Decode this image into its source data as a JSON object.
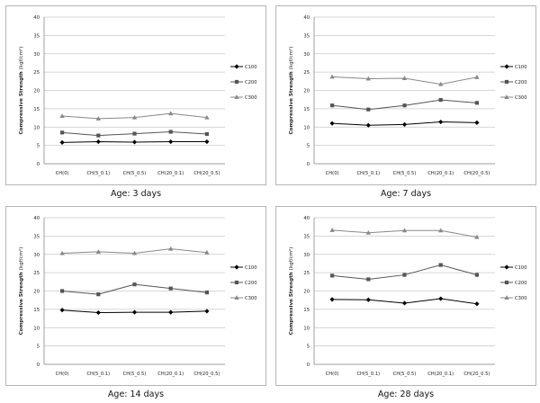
{
  "ylabel_main": "Compressive   Strength",
  "ylabel_unit": "(kgf/cm²)",
  "chart_data": [
    {
      "type": "line",
      "caption": "Age:  3 days",
      "categories": [
        "CH(0)",
        "CH(5_0.1)",
        "CH(5_0.5)",
        "CH(20_0.1)",
        "CH(20_0.5)"
      ],
      "yticks": [
        "0",
        "5",
        "10",
        "15",
        "20",
        "25",
        "30",
        "35",
        "40"
      ],
      "ylim": [
        0,
        40
      ],
      "grid": true,
      "legend": "right",
      "series": [
        {
          "name": "C100",
          "marker": "diamond",
          "color": "#000000",
          "values": [
            5.8,
            6.0,
            5.9,
            6.0,
            6.0
          ]
        },
        {
          "name": "C200",
          "marker": "square",
          "color": "#555555",
          "values": [
            8.5,
            7.7,
            8.2,
            8.7,
            8.1
          ]
        },
        {
          "name": "C300",
          "marker": "triangle",
          "color": "#888888",
          "values": [
            13.0,
            12.3,
            12.6,
            13.7,
            12.6
          ]
        }
      ]
    },
    {
      "type": "line",
      "caption": "Age:  7 days",
      "categories": [
        "CH(0)",
        "CH(5_0.1)",
        "CH(5_0.5)",
        "CH(20_0.1)",
        "CH(20_0.5)"
      ],
      "yticks": [
        "0",
        "5",
        "10",
        "15",
        "20",
        "25",
        "30",
        "35",
        "40"
      ],
      "ylim": [
        0,
        40
      ],
      "grid": true,
      "legend": "right",
      "series": [
        {
          "name": "C100",
          "marker": "diamond",
          "color": "#000000",
          "values": [
            11.0,
            10.5,
            10.7,
            11.4,
            11.2
          ]
        },
        {
          "name": "C200",
          "marker": "square",
          "color": "#555555",
          "values": [
            15.9,
            14.8,
            15.9,
            17.4,
            16.6
          ]
        },
        {
          "name": "C300",
          "marker": "triangle",
          "color": "#888888",
          "values": [
            23.7,
            23.2,
            23.3,
            21.7,
            23.6
          ]
        }
      ]
    },
    {
      "type": "line",
      "caption": "Age:  14 days",
      "categories": [
        "CH(0)",
        "CH(5_0.1)",
        "CH(5_0.5)",
        "CH(20_0.1)",
        "CH(20_0.5)"
      ],
      "yticks": [
        "0",
        "5",
        "10",
        "15",
        "20",
        "25",
        "30",
        "35",
        "40"
      ],
      "ylim": [
        0,
        40
      ],
      "grid": true,
      "legend": "right",
      "series": [
        {
          "name": "C100",
          "marker": "diamond",
          "color": "#000000",
          "values": [
            14.8,
            14.1,
            14.2,
            14.2,
            14.5
          ]
        },
        {
          "name": "C200",
          "marker": "square",
          "color": "#555555",
          "values": [
            20.0,
            19.1,
            21.8,
            20.7,
            19.6
          ]
        },
        {
          "name": "C300",
          "marker": "triangle",
          "color": "#888888",
          "values": [
            30.3,
            30.7,
            30.3,
            31.5,
            30.5
          ]
        }
      ]
    },
    {
      "type": "line",
      "caption": "Age:  28 days",
      "categories": [
        "CH(0)",
        "CH(5_0.1)",
        "CH(5_0.5)",
        "CH(20_0.1)",
        "CH(20_0.5)"
      ],
      "yticks": [
        "0",
        "5",
        "10",
        "15",
        "20",
        "25",
        "30",
        "35",
        "40"
      ],
      "ylim": [
        0,
        40
      ],
      "grid": true,
      "legend": "right",
      "series": [
        {
          "name": "C100",
          "marker": "diamond",
          "color": "#000000",
          "values": [
            17.7,
            17.6,
            16.7,
            17.9,
            16.5
          ]
        },
        {
          "name": "C200",
          "marker": "square",
          "color": "#555555",
          "values": [
            24.2,
            23.2,
            24.4,
            27.1,
            24.4
          ]
        },
        {
          "name": "C300",
          "marker": "triangle",
          "color": "#888888",
          "values": [
            36.6,
            35.9,
            36.5,
            36.5,
            34.7
          ]
        }
      ]
    }
  ]
}
